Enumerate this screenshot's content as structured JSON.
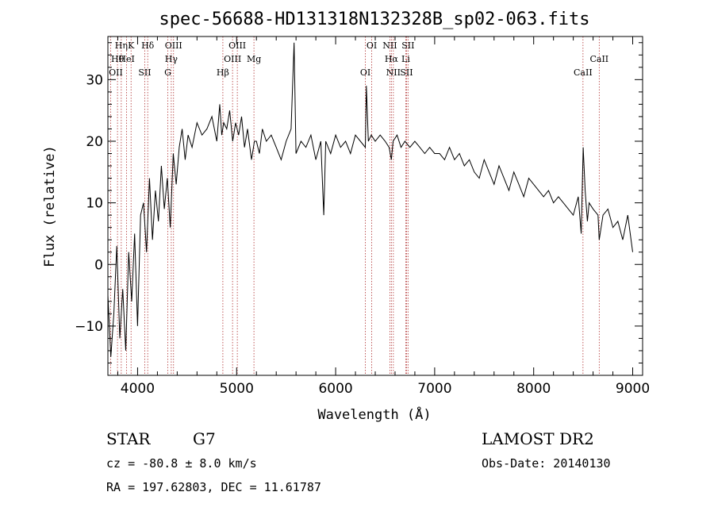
{
  "chart_data": {
    "type": "line",
    "title": "spec-56688-HD131318N132328B_sp02-063.fits",
    "xlabel": "Wavelength (Å)",
    "ylabel": "Flux (relative)",
    "xlim": [
      3700,
      9100
    ],
    "ylim": [
      -18,
      37
    ],
    "x_ticks": [
      4000,
      5000,
      6000,
      7000,
      8000,
      9000
    ],
    "y_ticks": [
      -10,
      0,
      10,
      20,
      30
    ],
    "series": [
      {
        "name": "spectrum",
        "x": [
          3700,
          3730,
          3760,
          3790,
          3820,
          3850,
          3880,
          3910,
          3940,
          3970,
          4000,
          4030,
          4060,
          4090,
          4120,
          4150,
          4180,
          4210,
          4240,
          4270,
          4300,
          4330,
          4360,
          4390,
          4420,
          4450,
          4480,
          4510,
          4550,
          4600,
          4650,
          4700,
          4750,
          4800,
          4830,
          4850,
          4870,
          4900,
          4930,
          4960,
          4990,
          5020,
          5050,
          5080,
          5110,
          5150,
          5180,
          5200,
          5230,
          5260,
          5300,
          5350,
          5400,
          5450,
          5500,
          5550,
          5580,
          5600,
          5650,
          5700,
          5750,
          5800,
          5850,
          5880,
          5900,
          5950,
          6000,
          6050,
          6100,
          6150,
          6200,
          6250,
          6300,
          6310,
          6330,
          6360,
          6400,
          6450,
          6500,
          6540,
          6563,
          6580,
          6620,
          6660,
          6700,
          6750,
          6800,
          6850,
          6900,
          6950,
          7000,
          7050,
          7100,
          7150,
          7200,
          7250,
          7300,
          7350,
          7400,
          7450,
          7500,
          7550,
          7600,
          7650,
          7700,
          7750,
          7800,
          7850,
          7900,
          7950,
          8000,
          8050,
          8100,
          8150,
          8200,
          8250,
          8300,
          8350,
          8400,
          8450,
          8480,
          8500,
          8520,
          8542,
          8560,
          8600,
          8650,
          8662,
          8700,
          8750,
          8800,
          8850,
          8900,
          8950,
          9000
        ],
        "values": [
          -5,
          -15,
          -8,
          3,
          -12,
          -4,
          -14,
          2,
          -6,
          5,
          -10,
          8,
          10,
          2,
          14,
          4,
          12,
          7,
          16,
          9,
          14,
          6,
          18,
          13,
          19,
          22,
          17,
          21,
          19,
          23,
          21,
          22,
          24,
          20,
          26,
          21,
          23,
          22,
          25,
          20,
          23,
          21,
          24,
          19,
          22,
          17,
          20,
          20,
          18,
          22,
          20,
          21,
          19,
          17,
          20,
          22,
          36,
          18,
          20,
          19,
          21,
          17,
          20,
          8,
          20,
          18,
          21,
          19,
          20,
          18,
          21,
          20,
          19,
          29,
          20,
          21,
          20,
          21,
          20,
          19,
          17,
          20,
          21,
          19,
          20,
          19,
          20,
          19,
          18,
          19,
          18,
          18,
          17,
          19,
          17,
          18,
          16,
          17,
          15,
          14,
          17,
          15,
          13,
          16,
          14,
          12,
          15,
          13,
          11,
          14,
          13,
          12,
          11,
          12,
          10,
          11,
          10,
          9,
          8,
          11,
          5,
          19,
          12,
          7,
          10,
          9,
          8,
          4,
          8,
          9,
          6,
          7,
          4,
          8,
          2
        ]
      }
    ],
    "spectral_lines": [
      {
        "label": "Hη",
        "wavelength": 3835
      },
      {
        "label": "Hθ",
        "wavelength": 3797
      },
      {
        "label": "OII",
        "wavelength": 3727
      },
      {
        "label": "K",
        "wavelength": 3934
      },
      {
        "label": "HeI",
        "wavelength": 3889
      },
      {
        "label": "SII",
        "wavelength": 4072
      },
      {
        "label": "Hδ",
        "wavelength": 4102
      },
      {
        "label": "Hγ",
        "wavelength": 4340
      },
      {
        "label": "G",
        "wavelength": 4305
      },
      {
        "label": "OIII",
        "wavelength": 4363
      },
      {
        "label": "OIII",
        "wavelength": 4959
      },
      {
        "label": "Hβ",
        "wavelength": 4861
      },
      {
        "label": "OIII",
        "wavelength": 5007
      },
      {
        "label": "Mg",
        "wavelength": 5175
      },
      {
        "label": "OI",
        "wavelength": 6300
      },
      {
        "label": "OI",
        "wavelength": 6364
      },
      {
        "label": "Hα",
        "wavelength": 6563
      },
      {
        "label": "SII",
        "wavelength": 6716
      },
      {
        "label": "NII",
        "wavelength": 6548
      },
      {
        "label": "Li",
        "wavelength": 6708
      },
      {
        "label": "NII",
        "wavelength": 6583
      },
      {
        "label": "SII",
        "wavelength": 6731
      },
      {
        "label": "CaII",
        "wavelength": 8662
      },
      {
        "label": "CaII",
        "wavelength": 8498
      }
    ]
  },
  "info": {
    "object_class": "STAR",
    "subclass": "G7",
    "survey": "LAMOST DR2",
    "cz": "cz = -80.8 ± 8.0 km/s",
    "obs_date": "Obs-Date: 20140130",
    "coords": "RA = 197.62803, DEC =  11.61787"
  }
}
